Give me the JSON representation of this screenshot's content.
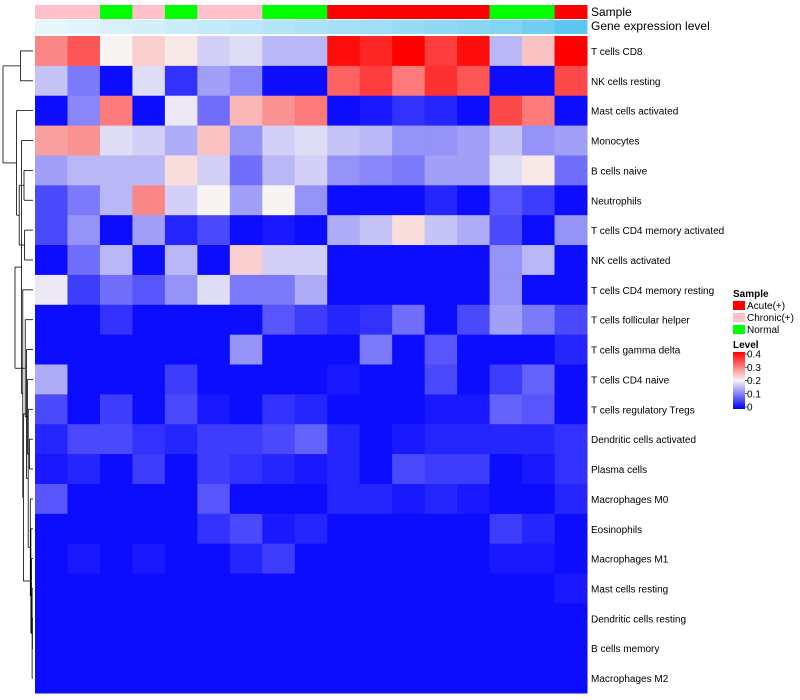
{
  "chart_data": {
    "type": "heatmap",
    "annotation_tracks": [
      "Sample",
      "Gene expression level"
    ],
    "sample_groups": [
      "Chronic(+)",
      "Chronic(+)",
      "Normal",
      "Chronic(+)",
      "Normal",
      "Chronic(+)",
      "Chronic(+)",
      "Normal",
      "Normal",
      "Acute(+)",
      "Acute(+)",
      "Acute(+)",
      "Acute(+)",
      "Acute(+)",
      "Normal",
      "Normal",
      "Acute(+)"
    ],
    "gene_expression_levels": [
      0.0,
      0.05,
      0.1,
      0.15,
      0.2,
      0.25,
      0.3,
      0.35,
      0.4,
      0.45,
      0.5,
      0.55,
      0.6,
      0.65,
      0.7,
      0.8,
      0.95
    ],
    "rows": [
      "T cells CD8",
      "NK cells resting",
      "Mast cells activated",
      "Monocytes",
      "B cells naive",
      "Neutrophils",
      "T cells CD4 memory activated",
      "NK cells activated",
      "T cells CD4 memory resting",
      "T cells follicular helper",
      "T cells gamma delta",
      "T cells CD4 naive",
      "T cells regulatory  Tregs",
      "Dendritic cells activated",
      "Plasma cells",
      "Macrophages M0",
      "Eosinophils",
      "Macrophages M1",
      "Mast cells resting",
      "Dendritic cells resting",
      "B cells memory",
      "Macrophages M2"
    ],
    "values": [
      [
        0.29,
        0.33,
        0.2,
        0.23,
        0.21,
        0.17,
        0.18,
        0.15,
        0.15,
        0.39,
        0.37,
        0.4,
        0.35,
        0.39,
        0.15,
        0.24,
        0.4
      ],
      [
        0.16,
        0.1,
        0.01,
        0.18,
        0.04,
        0.13,
        0.11,
        0.01,
        0.01,
        0.32,
        0.35,
        0.3,
        0.36,
        0.33,
        0.01,
        0.01,
        0.34
      ],
      [
        0.01,
        0.11,
        0.3,
        0.01,
        0.19,
        0.09,
        0.25,
        0.28,
        0.3,
        0.01,
        0.02,
        0.04,
        0.03,
        0.01,
        0.34,
        0.3,
        0.01
      ],
      [
        0.27,
        0.28,
        0.18,
        0.17,
        0.14,
        0.24,
        0.12,
        0.17,
        0.18,
        0.16,
        0.15,
        0.12,
        0.12,
        0.13,
        0.16,
        0.12,
        0.13
      ],
      [
        0.13,
        0.15,
        0.15,
        0.15,
        0.22,
        0.17,
        0.09,
        0.15,
        0.17,
        0.12,
        0.11,
        0.1,
        0.13,
        0.13,
        0.18,
        0.21,
        0.09
      ],
      [
        0.06,
        0.1,
        0.15,
        0.29,
        0.17,
        0.2,
        0.13,
        0.2,
        0.12,
        0.01,
        0.01,
        0.01,
        0.03,
        0.01,
        0.07,
        0.05,
        0.01
      ],
      [
        0.06,
        0.12,
        0.01,
        0.13,
        0.03,
        0.06,
        0.01,
        0.02,
        0.01,
        0.14,
        0.16,
        0.22,
        0.16,
        0.14,
        0.06,
        0.01,
        0.12
      ],
      [
        0.01,
        0.09,
        0.15,
        0.01,
        0.15,
        0.01,
        0.23,
        0.17,
        0.17,
        0.01,
        0.01,
        0.01,
        0.01,
        0.01,
        0.12,
        0.15,
        0.01
      ],
      [
        0.19,
        0.05,
        0.09,
        0.07,
        0.12,
        0.18,
        0.1,
        0.1,
        0.14,
        0.01,
        0.01,
        0.01,
        0.01,
        0.01,
        0.12,
        0.01,
        0.01
      ],
      [
        0.01,
        0.01,
        0.04,
        0.01,
        0.01,
        0.01,
        0.01,
        0.07,
        0.05,
        0.03,
        0.04,
        0.09,
        0.01,
        0.06,
        0.13,
        0.1,
        0.06
      ],
      [
        0.01,
        0.01,
        0.01,
        0.01,
        0.01,
        0.01,
        0.12,
        0.01,
        0.01,
        0.01,
        0.1,
        0.01,
        0.07,
        0.01,
        0.01,
        0.01,
        0.03
      ],
      [
        0.14,
        0.01,
        0.01,
        0.01,
        0.05,
        0.01,
        0.01,
        0.01,
        0.01,
        0.02,
        0.01,
        0.01,
        0.06,
        0.01,
        0.05,
        0.08,
        0.01
      ],
      [
        0.06,
        0.01,
        0.05,
        0.01,
        0.06,
        0.02,
        0.01,
        0.04,
        0.03,
        0.01,
        0.01,
        0.01,
        0.02,
        0.02,
        0.08,
        0.07,
        0.01
      ],
      [
        0.03,
        0.06,
        0.06,
        0.04,
        0.03,
        0.05,
        0.05,
        0.06,
        0.08,
        0.03,
        0.01,
        0.02,
        0.03,
        0.03,
        0.03,
        0.03,
        0.04
      ],
      [
        0.02,
        0.03,
        0.01,
        0.05,
        0.01,
        0.05,
        0.04,
        0.03,
        0.02,
        0.03,
        0.01,
        0.06,
        0.05,
        0.05,
        0.01,
        0.02,
        0.04
      ],
      [
        0.07,
        0.01,
        0.01,
        0.01,
        0.01,
        0.07,
        0.01,
        0.01,
        0.01,
        0.03,
        0.03,
        0.02,
        0.03,
        0.02,
        0.01,
        0.01,
        0.03
      ],
      [
        0.01,
        0.01,
        0.01,
        0.01,
        0.01,
        0.04,
        0.06,
        0.02,
        0.03,
        0.01,
        0.01,
        0.01,
        0.01,
        0.01,
        0.05,
        0.03,
        0.01
      ],
      [
        0.01,
        0.02,
        0.01,
        0.02,
        0.01,
        0.01,
        0.03,
        0.05,
        0.01,
        0.01,
        0.01,
        0.01,
        0.01,
        0.01,
        0.02,
        0.02,
        0.01
      ],
      [
        0.01,
        0.01,
        0.01,
        0.01,
        0.01,
        0.01,
        0.01,
        0.01,
        0.01,
        0.01,
        0.01,
        0.01,
        0.01,
        0.01,
        0.01,
        0.01,
        0.02
      ],
      [
        0.01,
        0.01,
        0.01,
        0.01,
        0.01,
        0.01,
        0.01,
        0.01,
        0.01,
        0.01,
        0.01,
        0.01,
        0.01,
        0.01,
        0.01,
        0.01,
        0.01
      ],
      [
        0.01,
        0.01,
        0.01,
        0.01,
        0.01,
        0.01,
        0.01,
        0.01,
        0.01,
        0.01,
        0.01,
        0.01,
        0.01,
        0.01,
        0.01,
        0.01,
        0.01
      ],
      [
        0.01,
        0.01,
        0.01,
        0.01,
        0.01,
        0.01,
        0.01,
        0.01,
        0.01,
        0.01,
        0.01,
        0.01,
        0.01,
        0.01,
        0.01,
        0.01,
        0.01
      ]
    ],
    "color_scale": {
      "min": 0,
      "mid": 0.2,
      "max": 0.4,
      "low_color": "#0000ff",
      "mid_color": "#f8f4f4",
      "high_color": "#ff0000"
    },
    "sample_colors": {
      "Acute(+)": "#ff0000",
      "Chronic(+)": "#ffc0cb",
      "Normal": "#00ff00"
    },
    "gene_expression_colors": {
      "low": "#e8f6fc",
      "high": "#56c5f0"
    },
    "legend": {
      "sample_title": "Sample",
      "sample_entries": [
        "Acute(+)",
        "Chronic(+)",
        "Normal"
      ],
      "level_title": "Level",
      "level_ticks": [
        "0.4",
        "0.3",
        "0.2",
        "0.1",
        "0"
      ]
    },
    "dendrogram": "row clustering (hierarchical)"
  }
}
